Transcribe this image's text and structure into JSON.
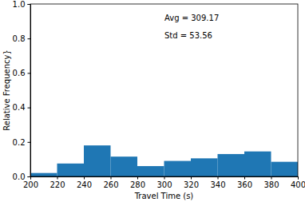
{
  "chart_data": {
    "type": "histogram",
    "x_label": "Travel Time (s)",
    "y_label": "Relative Frequency}",
    "annotations": [
      "Avg = 309.17",
      "Std = 53.56"
    ],
    "bins": [
      200,
      220,
      240,
      260,
      280,
      300,
      320,
      340,
      360,
      380,
      400
    ],
    "values": [
      0.02,
      0.075,
      0.18,
      0.115,
      0.06,
      0.09,
      0.105,
      0.13,
      0.145,
      0.085
    ],
    "color": "#1f77b4",
    "xlim": [
      200,
      400
    ],
    "xticks": [
      200,
      220,
      240,
      260,
      280,
      300,
      320,
      340,
      360,
      380,
      400
    ],
    "ylim": [
      0,
      1
    ],
    "yticks": [
      {
        "value": 0,
        "label": "0.0"
      },
      0.2,
      0.4,
      0.6,
      0.8,
      {
        "value": 1,
        "label": "1.0"
      }
    ]
  }
}
